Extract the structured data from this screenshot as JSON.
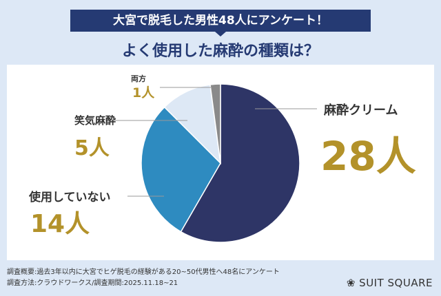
{
  "header": {
    "banner": "大宮で脱毛した男性48人にアンケート！",
    "title": "よく使用した麻酔の種類は？"
  },
  "chart_data": {
    "type": "pie",
    "categories": [
      "麻酔クリーム",
      "使用していない",
      "笑気麻酔",
      "両方"
    ],
    "values": [
      28,
      14,
      5,
      1
    ],
    "value_labels": [
      "28人",
      "14人",
      "5人",
      "1人"
    ],
    "colors": [
      "#2e3566",
      "#2e8bc0",
      "#dde8f5",
      "#8a8a8a"
    ],
    "start": "top",
    "direction": "clockwise"
  },
  "footer": {
    "note1": "調査概要:過去3年以内に大宮でヒゲ脱毛の経験がある20~50代男性へ48名にアンケート",
    "note2": "調査方法:クラウドワークス/調査期間:2025.11.18~21",
    "logo": "SUIT SQUARE"
  }
}
